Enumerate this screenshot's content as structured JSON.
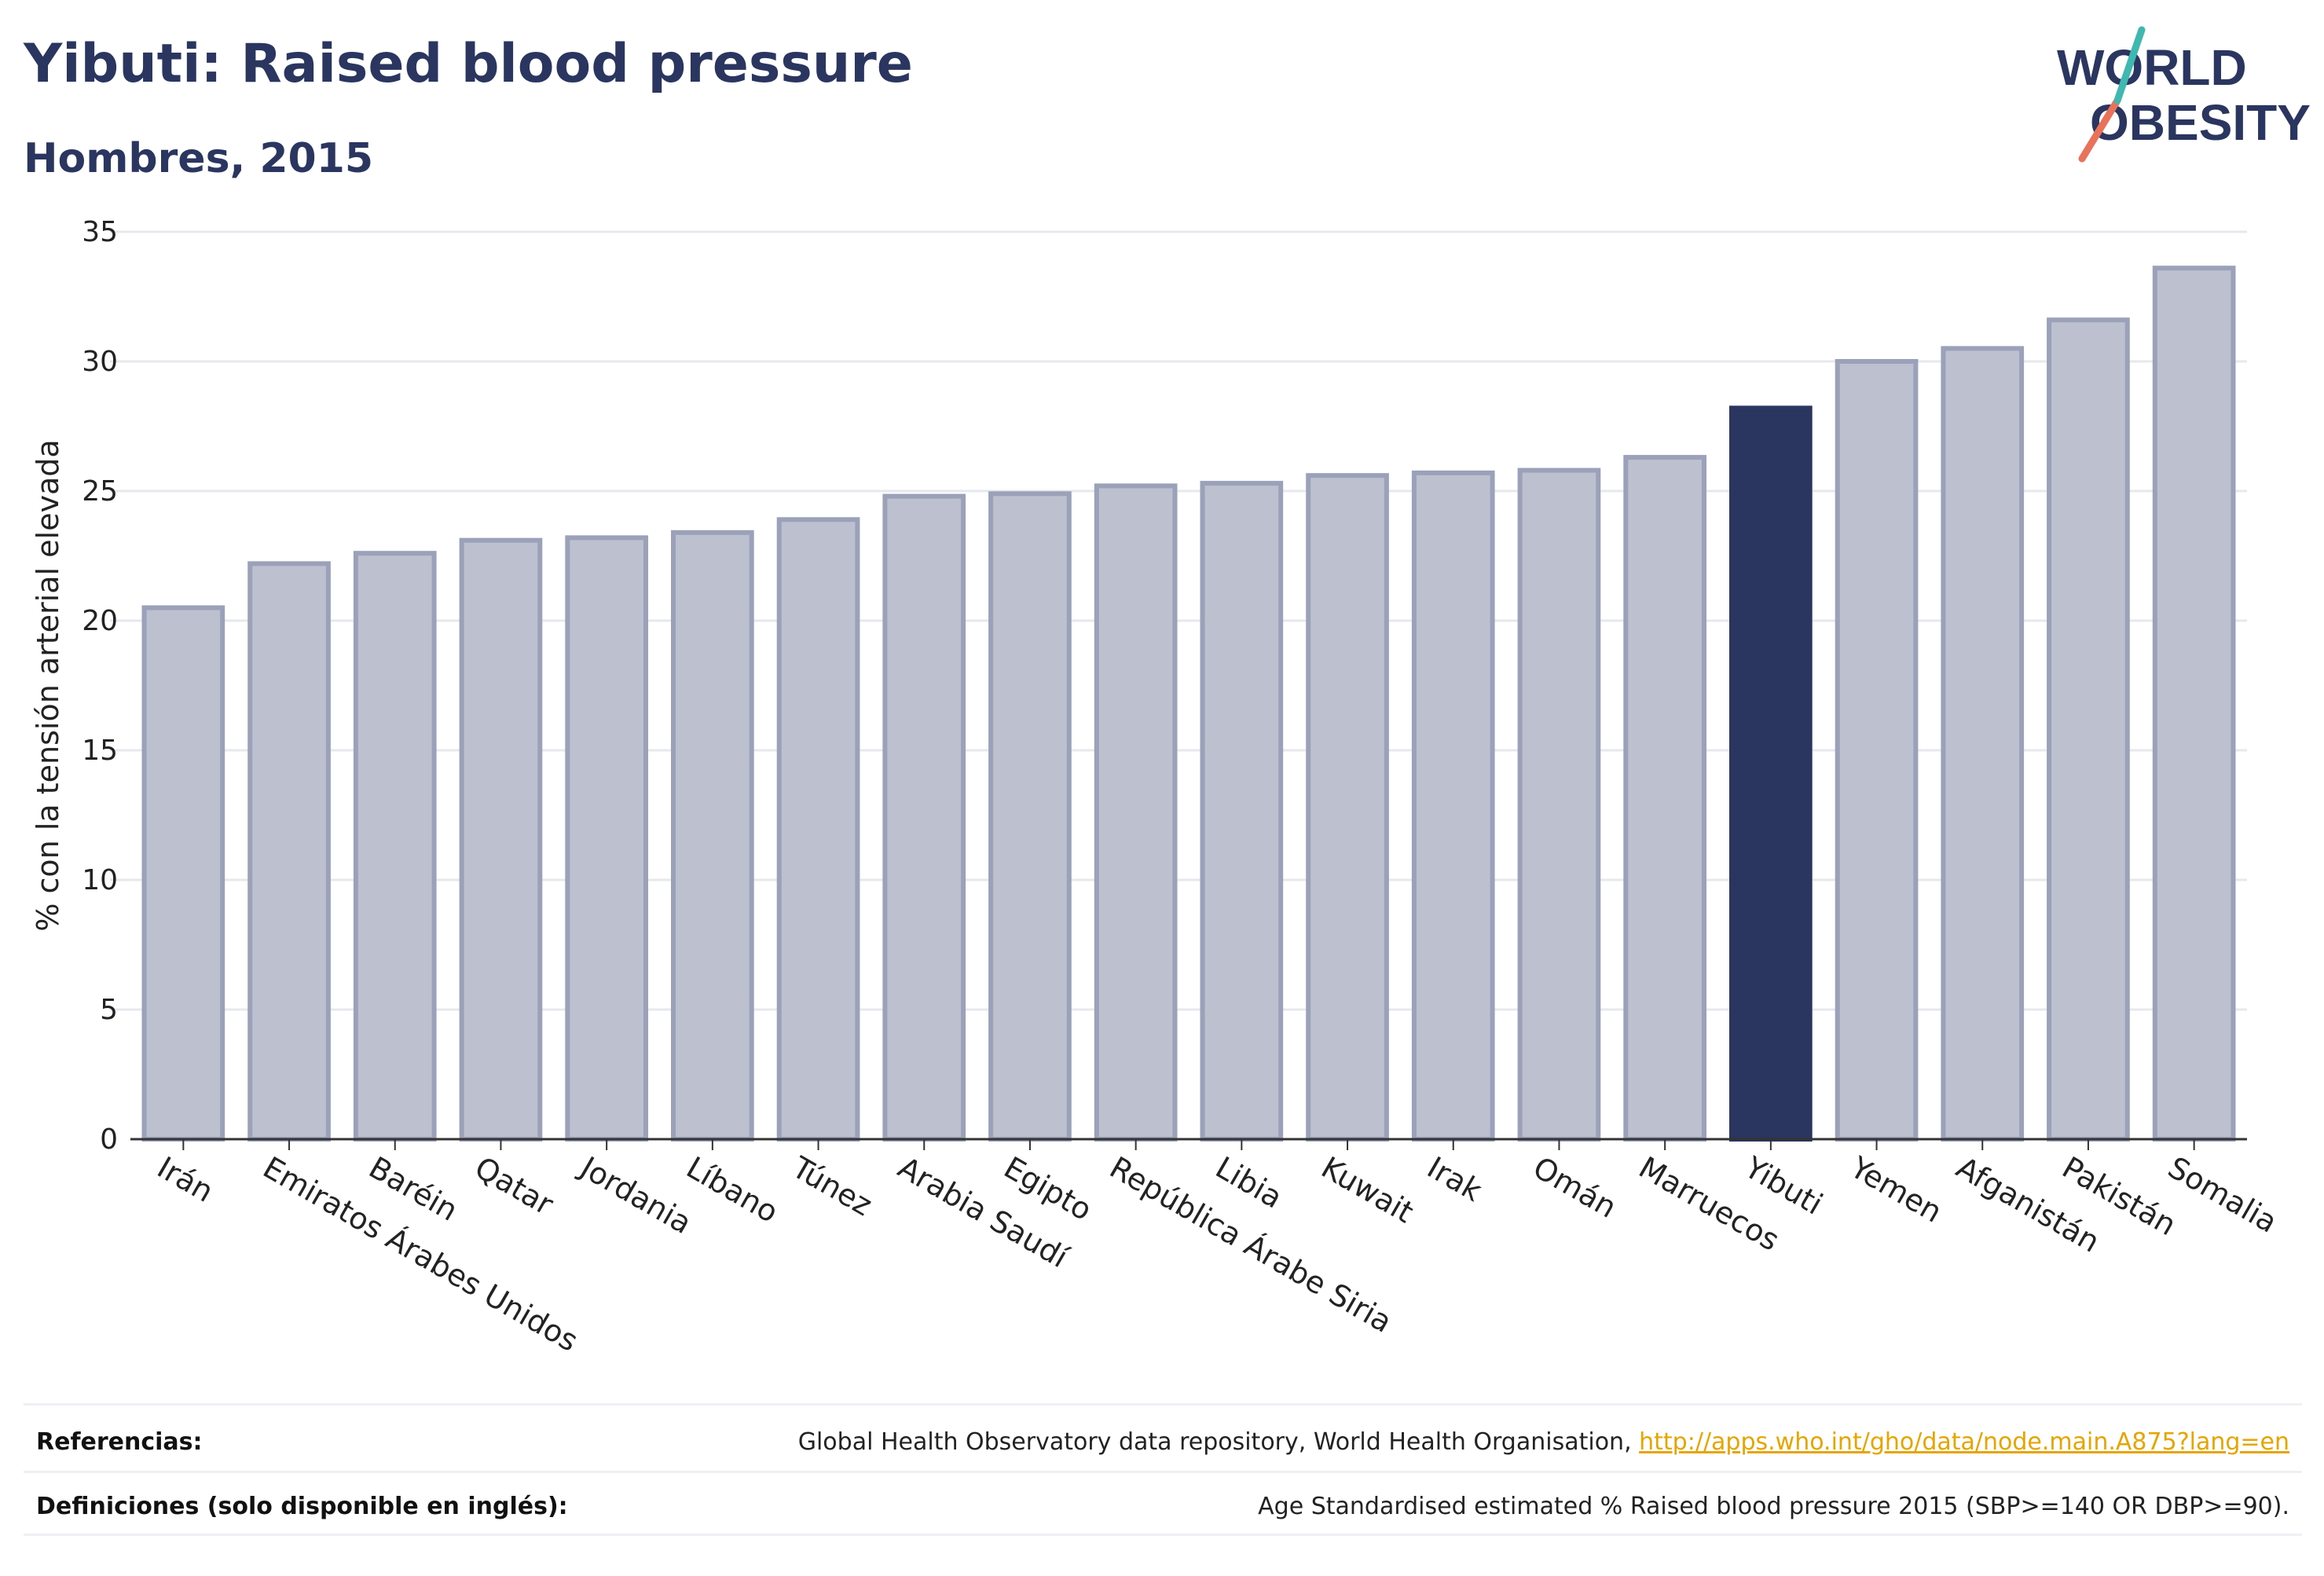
{
  "header": {
    "title": "Yibuti: Raised blood pressure",
    "subtitle": "Hombres, 2015"
  },
  "logo": {
    "line1": "WORLD",
    "line2": "OBESITY",
    "slash_colors": [
      "#e8735a",
      "#3fb8b0"
    ]
  },
  "colors": {
    "highlight": "#2a3560",
    "bar_fill": "#bcc0cf",
    "bar_stroke": "#9aa1b8",
    "text": "#2a3560"
  },
  "chart_data": {
    "type": "bar",
    "ylabel": "% con la tensión arterial elevada",
    "ylim": [
      0,
      35
    ],
    "yticks": [
      0,
      5,
      10,
      15,
      20,
      25,
      30,
      35
    ],
    "grid": true,
    "highlight": "Yibuti",
    "categories": [
      "Irán",
      "Emiratos Árabes Unidos",
      "Baréin",
      "Qatar",
      "Jordania",
      "Líbano",
      "Túnez",
      "Arabia Saudí",
      "Egipto",
      "República Árabe Siria",
      "Libia",
      "Kuwait",
      "Irak",
      "Omán",
      "Marruecos",
      "Yibuti",
      "Yemen",
      "Afganistán",
      "Pakistán",
      "Somalia"
    ],
    "values": [
      20.5,
      22.2,
      22.6,
      23.1,
      23.2,
      23.4,
      23.9,
      24.8,
      24.9,
      25.2,
      25.3,
      25.6,
      25.7,
      25.8,
      26.3,
      28.2,
      30.0,
      30.5,
      31.6,
      33.6
    ]
  },
  "footer": {
    "references_label": "Referencias:",
    "references_text": "Global Health Observatory data repository, World Health Organisation, ",
    "references_link": "http://apps.who.int/gho/data/node.main.A875?lang=en",
    "definitions_label": "Definiciones (solo disponible en inglés):",
    "definitions_text": "Age Standardised estimated % Raised blood pressure 2015 (SBP>=140 OR DBP>=90)."
  }
}
